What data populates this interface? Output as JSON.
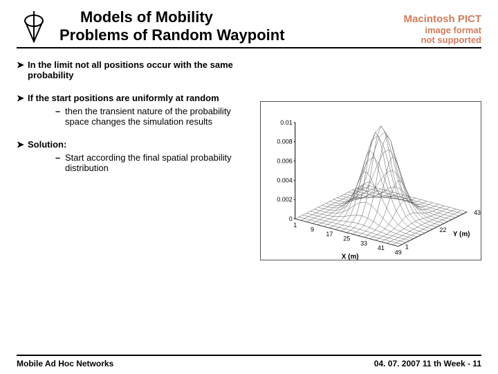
{
  "header": {
    "title_line1": "Models of Mobility",
    "title_line2": "Problems of Random Waypoint",
    "mac_pict": {
      "line1": "Macintosh PICT",
      "line2": "image format",
      "line3": "not supported",
      "color": "#d17a5a"
    }
  },
  "bullets": [
    {
      "text": "In the limit not all positions occur with the same probability",
      "subs": []
    },
    {
      "text": "If the start positions are uniformly at random",
      "subs": [
        "then the transient nature of the probability space changes the simulation results"
      ]
    },
    {
      "text": "Solution:",
      "subs": [
        "Start according the final spatial probability distribution"
      ]
    }
  ],
  "chart": {
    "z_ticks": [
      "0.01",
      "0.008",
      "0.006",
      "0.004",
      "0.002",
      "0"
    ],
    "x_ticks": [
      "1",
      "9",
      "17",
      "25",
      "33",
      "41",
      "49"
    ],
    "y_ticks": [
      "1",
      "22",
      "43"
    ],
    "x_label": "X (m)",
    "y_label": "Y (m)",
    "grid_color": "#555555",
    "axis_color": "#000000",
    "label_fontsize": 10,
    "tick_fontsize": 9
  },
  "footer": {
    "left": "Mobile Ad Hoc Networks",
    "right": "04. 07. 2007 11 th Week - 11"
  }
}
